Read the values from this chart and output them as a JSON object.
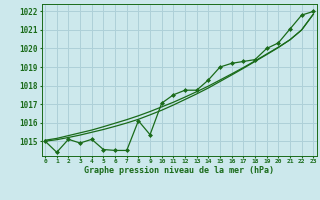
{
  "x": [
    0,
    1,
    2,
    3,
    4,
    5,
    6,
    7,
    8,
    9,
    10,
    11,
    12,
    13,
    14,
    15,
    16,
    17,
    18,
    19,
    20,
    21,
    22,
    23
  ],
  "data_line": [
    1015.0,
    1014.4,
    1015.1,
    1014.9,
    1015.1,
    1014.55,
    1014.5,
    1014.5,
    1016.1,
    1015.35,
    1017.05,
    1017.5,
    1017.75,
    1017.75,
    1018.3,
    1019.0,
    1019.2,
    1019.3,
    1019.4,
    1020.0,
    1020.3,
    1021.05,
    1021.8,
    1022.0
  ],
  "trend_upper": [
    1015.05,
    1015.15,
    1015.3,
    1015.45,
    1015.6,
    1015.78,
    1015.97,
    1016.16,
    1016.37,
    1016.6,
    1016.85,
    1017.1,
    1017.38,
    1017.67,
    1017.97,
    1018.3,
    1018.63,
    1018.97,
    1019.33,
    1019.7,
    1020.07,
    1020.47,
    1021.0,
    1021.85
  ],
  "trend_lower": [
    1015.0,
    1015.08,
    1015.2,
    1015.33,
    1015.48,
    1015.63,
    1015.8,
    1015.98,
    1016.18,
    1016.42,
    1016.67,
    1016.95,
    1017.25,
    1017.55,
    1017.87,
    1018.22,
    1018.57,
    1018.93,
    1019.3,
    1019.67,
    1020.05,
    1020.47,
    1021.0,
    1021.85
  ],
  "line_color": "#1a6b1a",
  "bg_color": "#cce8ec",
  "grid_color": "#aed0d8",
  "xlabel": "Graphe pression niveau de la mer (hPa)",
  "ylim": [
    1014.2,
    1022.4
  ],
  "yticks": [
    1015,
    1016,
    1017,
    1018,
    1019,
    1020,
    1021,
    1022
  ],
  "xticks": [
    0,
    1,
    2,
    3,
    4,
    5,
    6,
    7,
    8,
    9,
    10,
    11,
    12,
    13,
    14,
    15,
    16,
    17,
    18,
    19,
    20,
    21,
    22,
    23
  ]
}
